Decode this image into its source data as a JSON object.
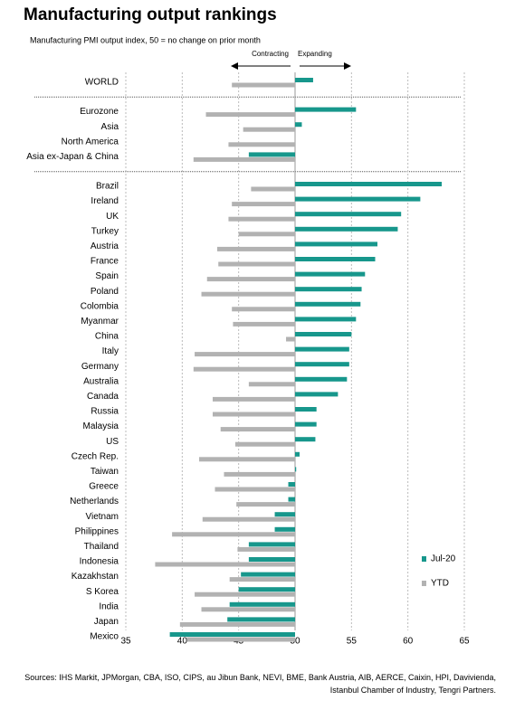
{
  "chart_data": {
    "type": "hbar",
    "title": "Manufacturing output rankings",
    "subtitle": "Manufacturing PMI output index, 50 = no change on prior month",
    "annotations": [
      "Contracting",
      "Expanding"
    ],
    "source": "Sources: IHS Markit, JPMorgan, CBA, ISO, CIPS, au Jibun Bank, NEVI, BME, Bank Austria, AIB, AERCE, Caixin, HPI, Davivienda, Istanbul Chamber of Industry, Tengri Partners.",
    "categories": [
      "WORLD",
      "Eurozone",
      "Asia",
      "North America",
      "Asia ex-Japan & China",
      "Brazil",
      "Ireland",
      "UK",
      "Turkey",
      "Austria",
      "France",
      "Spain",
      "Poland",
      "Colombia",
      "Myanmar",
      "China",
      "Italy",
      "Germany",
      "Australia",
      "Canada",
      "Russia",
      "Malaysia",
      "US",
      "Czech Rep.",
      "Taiwan",
      "Greece",
      "Netherlands",
      "Vietnam",
      "Philippines",
      "Thailand",
      "Indonesia",
      "Kazakhstan",
      "S Korea",
      "India",
      "Japan",
      "Mexico"
    ],
    "group_breaks": [
      1,
      5
    ],
    "baseline": 50,
    "series": [
      {
        "name": "Jul-20",
        "color": "#17978c",
        "values": [
          51.6,
          55.4,
          50.6,
          50.0,
          45.9,
          63.0,
          61.1,
          59.4,
          59.1,
          57.3,
          57.1,
          56.2,
          55.9,
          55.8,
          55.4,
          55.0,
          54.8,
          54.8,
          54.6,
          53.8,
          51.9,
          51.9,
          51.8,
          50.4,
          50.1,
          49.4,
          49.4,
          48.2,
          48.2,
          45.9,
          45.9,
          45.2,
          45.0,
          44.2,
          44.0,
          38.9
        ]
      },
      {
        "name": "YTD",
        "color": "#b2b2b2",
        "values": [
          44.4,
          42.1,
          45.4,
          44.1,
          41.0,
          46.1,
          44.4,
          44.1,
          45.0,
          43.1,
          43.2,
          42.2,
          41.7,
          44.4,
          44.5,
          49.2,
          41.1,
          41.0,
          45.9,
          42.7,
          42.7,
          43.4,
          44.7,
          41.5,
          43.7,
          42.9,
          44.8,
          41.8,
          39.1,
          44.9,
          37.6,
          44.2,
          41.1,
          41.7,
          39.8,
          40.4
        ]
      }
    ],
    "xlim": [
      35,
      65
    ],
    "xticks": [
      35,
      40,
      45,
      50,
      55,
      60,
      65
    ],
    "grid": true,
    "legend": "lower right"
  }
}
